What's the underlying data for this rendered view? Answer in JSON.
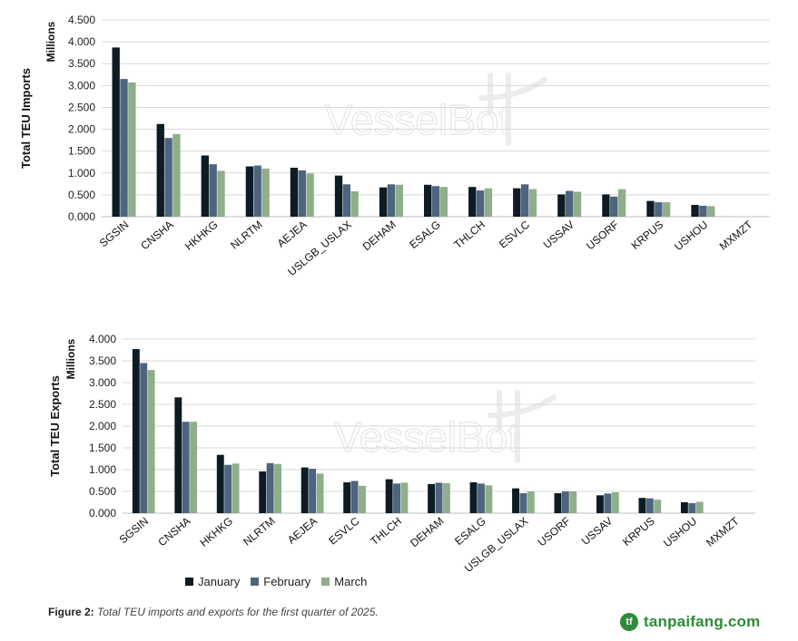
{
  "chart_data": [
    {
      "type": "bar",
      "ylabel": "Total TEU Imports",
      "yunit": "Millions",
      "ylim": [
        0,
        4.5
      ],
      "yticks": [
        "0.000",
        "0.500",
        "1.000",
        "1.500",
        "2.000",
        "2.500",
        "3.000",
        "3.500",
        "4.000",
        "4.500"
      ],
      "grid": true,
      "categories": [
        "SGSIN",
        "CNSHA",
        "HKHKG",
        "NLRTM",
        "AEJEA",
        "USLGB_USLAX",
        "DEHAM",
        "ESALG",
        "THLCH",
        "ESVLC",
        "USSAV",
        "USORF",
        "KRPUS",
        "USHOU",
        "MXMZT"
      ],
      "series": [
        {
          "name": "January",
          "values": [
            3.87,
            2.12,
            1.4,
            1.15,
            1.12,
            0.94,
            0.67,
            0.73,
            0.68,
            0.65,
            0.51,
            0.51,
            0.36,
            0.27,
            0
          ]
        },
        {
          "name": "February",
          "values": [
            3.15,
            1.8,
            1.2,
            1.17,
            1.06,
            0.74,
            0.74,
            0.7,
            0.6,
            0.74,
            0.59,
            0.46,
            0.33,
            0.25,
            0
          ]
        },
        {
          "name": "March",
          "values": [
            3.07,
            1.89,
            1.05,
            1.1,
            0.99,
            0.58,
            0.73,
            0.68,
            0.65,
            0.63,
            0.57,
            0.63,
            0.33,
            0.24,
            0
          ]
        }
      ]
    },
    {
      "type": "bar",
      "ylabel": "Total TEU Exports",
      "yunit": "Millions",
      "ylim": [
        0,
        4.0
      ],
      "yticks": [
        "0.000",
        "0.500",
        "1.000",
        "1.500",
        "2.000",
        "2.500",
        "3.000",
        "3.500",
        "4.000"
      ],
      "grid": true,
      "legend_position": "bottom-left",
      "categories": [
        "SGSIN",
        "CNSHA",
        "HKHKG",
        "NLRTM",
        "AEJEA",
        "ESVLC",
        "THLCH",
        "DEHAM",
        "ESALG",
        "USLGB_USLAX",
        "USORF",
        "USSAV",
        "KRPUS",
        "USHOU",
        "MXMZT"
      ],
      "series": [
        {
          "name": "January",
          "values": [
            3.77,
            2.66,
            1.34,
            0.96,
            1.05,
            0.71,
            0.78,
            0.67,
            0.71,
            0.57,
            0.46,
            0.41,
            0.35,
            0.25,
            0
          ]
        },
        {
          "name": "February",
          "values": [
            3.45,
            2.1,
            1.11,
            1.15,
            1.02,
            0.74,
            0.68,
            0.7,
            0.68,
            0.46,
            0.5,
            0.45,
            0.34,
            0.23,
            0
          ]
        },
        {
          "name": "March",
          "values": [
            3.29,
            2.1,
            1.14,
            1.13,
            0.91,
            0.63,
            0.7,
            0.69,
            0.64,
            0.5,
            0.5,
            0.48,
            0.31,
            0.26,
            0
          ]
        }
      ]
    }
  ],
  "colors": {
    "January": "#0d1b24",
    "February": "#4e6580",
    "March": "#8fae8a",
    "grid": "#d9d9d9",
    "axis": "#bfbfbf"
  },
  "legend": {
    "items": [
      "January",
      "February",
      "March"
    ]
  },
  "watermark": {
    "text": "VesselBot"
  },
  "caption": {
    "label": "Figure 2:",
    "text": "Total TEU imports and exports for the first quarter of 2025."
  },
  "brand": {
    "text": "tanpaifang.com",
    "logo_text": "tf",
    "logo_icon": "leaf-circle-icon"
  }
}
